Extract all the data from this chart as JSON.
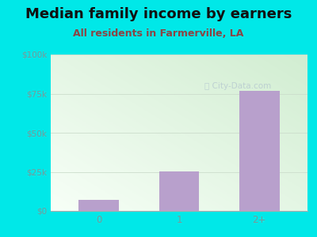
{
  "title": "Median family income by earners",
  "subtitle": "All residents in Farmerville, LA",
  "categories": [
    "0",
    "1",
    "2+"
  ],
  "values": [
    7000,
    25500,
    77000
  ],
  "bar_color": "#b8a0cc",
  "outer_bg": "#00e8e8",
  "yticks": [
    0,
    25000,
    50000,
    75000,
    100000
  ],
  "ytick_labels": [
    "$0",
    "$25k",
    "$50k",
    "$75k",
    "$100k"
  ],
  "ylim": [
    0,
    100000
  ],
  "title_fontsize": 13,
  "subtitle_fontsize": 9,
  "tick_color": "#7a9a9a",
  "title_color": "#111111",
  "subtitle_color": "#8B4444",
  "watermark": "City-Data.com",
  "bar_width": 0.5
}
